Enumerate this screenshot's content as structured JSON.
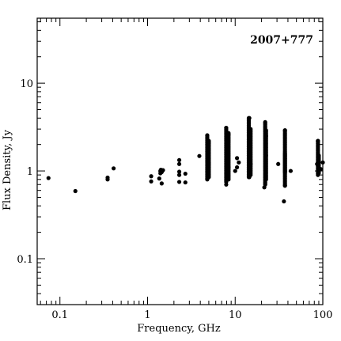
{
  "chart_data": {
    "type": "scatter",
    "title": "",
    "annotation": "2007+777",
    "xlabel": "Frequency, GHz",
    "ylabel": "Flux Density, Jy",
    "xscale": "log",
    "yscale": "log",
    "xlim": [
      0.055,
      100
    ],
    "ylim": [
      0.03,
      55
    ],
    "xticks": [
      {
        "value": 0.1,
        "label": "0.1"
      },
      {
        "value": 1,
        "label": "1"
      },
      {
        "value": 10,
        "label": "10"
      },
      {
        "value": 100,
        "label": "100"
      }
    ],
    "yticks": [
      {
        "value": 0.1,
        "label": "0.1"
      },
      {
        "value": 1,
        "label": "1"
      },
      {
        "value": 10,
        "label": "10"
      }
    ],
    "grid": false,
    "legend": "none",
    "marker_color": "#000000",
    "points": [
      {
        "x": 0.074,
        "y": 0.83
      },
      {
        "x": 0.15,
        "y": 0.59
      },
      {
        "x": 0.35,
        "y": 0.8
      },
      {
        "x": 0.35,
        "y": 0.84
      },
      {
        "x": 0.41,
        "y": 1.07
      },
      {
        "x": 1.1,
        "y": 0.76
      },
      {
        "x": 1.1,
        "y": 0.87
      },
      {
        "x": 1.36,
        "y": 0.82
      },
      {
        "x": 1.4,
        "y": 0.94
      },
      {
        "x": 1.4,
        "y": 1.0
      },
      {
        "x": 1.42,
        "y": 1.03
      },
      {
        "x": 1.45,
        "y": 0.72
      },
      {
        "x": 1.45,
        "y": 0.97
      },
      {
        "x": 1.5,
        "y": 1.02
      },
      {
        "x": 2.3,
        "y": 0.75
      },
      {
        "x": 2.3,
        "y": 0.9
      },
      {
        "x": 2.3,
        "y": 0.98
      },
      {
        "x": 2.3,
        "y": 1.2
      },
      {
        "x": 2.3,
        "y": 1.33
      },
      {
        "x": 2.7,
        "y": 0.74
      },
      {
        "x": 2.7,
        "y": 0.93
      },
      {
        "x": 3.9,
        "y": 1.48
      },
      {
        "x": 4.8,
        "y": 0.8
      },
      {
        "x": 4.8,
        "y": 2.55
      },
      {
        "x": 5.0,
        "y": 1.2
      },
      {
        "x": 5.0,
        "y": 2.1
      },
      {
        "x": 7.9,
        "y": 0.7
      },
      {
        "x": 7.9,
        "y": 3.1
      },
      {
        "x": 8.4,
        "y": 1.1
      },
      {
        "x": 8.4,
        "y": 2.6
      },
      {
        "x": 10.0,
        "y": 1.0
      },
      {
        "x": 10.5,
        "y": 1.4
      },
      {
        "x": 10.5,
        "y": 1.1
      },
      {
        "x": 11.0,
        "y": 1.25
      },
      {
        "x": 14.5,
        "y": 0.85
      },
      {
        "x": 14.5,
        "y": 4.0
      },
      {
        "x": 15.0,
        "y": 1.2
      },
      {
        "x": 21.5,
        "y": 0.65
      },
      {
        "x": 22.0,
        "y": 0.7
      },
      {
        "x": 22.0,
        "y": 3.6
      },
      {
        "x": 22.5,
        "y": 1.5
      },
      {
        "x": 22.5,
        "y": 2.5
      },
      {
        "x": 31.0,
        "y": 1.2
      },
      {
        "x": 36.0,
        "y": 0.45
      },
      {
        "x": 37.0,
        "y": 2.9
      },
      {
        "x": 37.0,
        "y": 0.68
      },
      {
        "x": 37.0,
        "y": 1.0
      },
      {
        "x": 43.0,
        "y": 1.0
      },
      {
        "x": 86.0,
        "y": 1.2
      },
      {
        "x": 88.0,
        "y": 2.2
      },
      {
        "x": 90.0,
        "y": 0.95
      },
      {
        "x": 95.0,
        "y": 1.05
      },
      {
        "x": 100.0,
        "y": 1.25
      }
    ],
    "ranges": [
      {
        "x": 4.8,
        "y_min": 0.82,
        "y_max": 2.5
      },
      {
        "x": 5.0,
        "y_min": 0.85,
        "y_max": 2.2
      },
      {
        "x": 7.9,
        "y_min": 0.75,
        "y_max": 3.1
      },
      {
        "x": 8.4,
        "y_min": 0.8,
        "y_max": 2.7
      },
      {
        "x": 14.3,
        "y_min": 0.85,
        "y_max": 4.0
      },
      {
        "x": 15.0,
        "y_min": 0.9,
        "y_max": 3.0
      },
      {
        "x": 22.0,
        "y_min": 0.72,
        "y_max": 3.5
      },
      {
        "x": 22.5,
        "y_min": 0.8,
        "y_max": 2.9
      },
      {
        "x": 37.0,
        "y_min": 0.68,
        "y_max": 2.9
      },
      {
        "x": 37.0,
        "y_min": 0.95,
        "y_max": 1.6
      },
      {
        "x": 88.0,
        "y_min": 0.9,
        "y_max": 2.2
      },
      {
        "x": 90.0,
        "y_min": 0.95,
        "y_max": 1.5
      }
    ]
  }
}
